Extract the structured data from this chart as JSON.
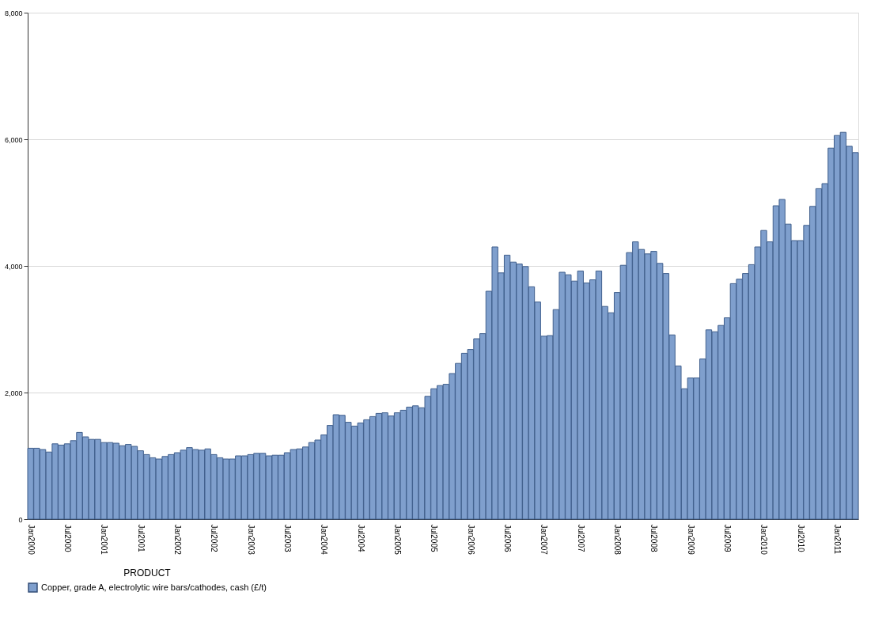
{
  "chart_data": {
    "type": "bar",
    "legend_title": "PRODUCT",
    "categories": [
      "Jan2000",
      null,
      null,
      null,
      null,
      null,
      "Jul2000",
      null,
      null,
      null,
      null,
      null,
      "Jan2001",
      null,
      null,
      null,
      null,
      null,
      "Jul2001",
      null,
      null,
      null,
      null,
      null,
      "Jan2002",
      null,
      null,
      null,
      null,
      null,
      "Jul2002",
      null,
      null,
      null,
      null,
      null,
      "Jan2003",
      null,
      null,
      null,
      null,
      null,
      "Jul2003",
      null,
      null,
      null,
      null,
      null,
      "Jan2004",
      null,
      null,
      null,
      null,
      null,
      "Jul2004",
      null,
      null,
      null,
      null,
      null,
      "Jan2005",
      null,
      null,
      null,
      null,
      null,
      "Jul2005",
      null,
      null,
      null,
      null,
      null,
      "Jan2006",
      null,
      null,
      null,
      null,
      null,
      "Jul2006",
      null,
      null,
      null,
      null,
      null,
      "Jan2007",
      null,
      null,
      null,
      null,
      null,
      "Jul2007",
      null,
      null,
      null,
      null,
      null,
      "Jan2008",
      null,
      null,
      null,
      null,
      null,
      "Jul2008",
      null,
      null,
      null,
      null,
      null,
      "Jan2009",
      null,
      null,
      null,
      null,
      null,
      "Jul2009",
      null,
      null,
      null,
      null,
      null,
      "Jan2010",
      null,
      null,
      null,
      null,
      null,
      "Jul2010",
      null,
      null,
      null,
      null,
      null,
      "Jan2011",
      null,
      null,
      null
    ],
    "series": [
      {
        "name": "Copper, grade A, electrolytic wire bars/cathodes, cash (£/t)",
        "color": "#7f9fcd",
        "values": [
          1120,
          1120,
          1100,
          1060,
          1190,
          1170,
          1190,
          1240,
          1370,
          1300,
          1260,
          1260,
          1210,
          1210,
          1200,
          1160,
          1180,
          1150,
          1080,
          1020,
          970,
          950,
          990,
          1020,
          1050,
          1090,
          1130,
          1100,
          1090,
          1110,
          1020,
          970,
          950,
          950,
          1000,
          1000,
          1020,
          1040,
          1040,
          1000,
          1010,
          1010,
          1050,
          1100,
          1110,
          1140,
          1210,
          1250,
          1330,
          1480,
          1650,
          1640,
          1530,
          1470,
          1520,
          1570,
          1620,
          1670,
          1680,
          1630,
          1680,
          1720,
          1770,
          1790,
          1760,
          1940,
          2060,
          2110,
          2130,
          2300,
          2460,
          2620,
          2680,
          2850,
          2930,
          3600,
          4300,
          3890,
          4170,
          4060,
          4030,
          3990,
          3670,
          3430,
          2890,
          2900,
          3310,
          3900,
          3860,
          3760,
          3920,
          3730,
          3780,
          3920,
          3360,
          3260,
          3580,
          4010,
          4210,
          4380,
          4260,
          4190,
          4230,
          4040,
          3880,
          2910,
          2420,
          2060,
          2230,
          2230,
          2530,
          2990,
          2960,
          3060,
          3180,
          3720,
          3790,
          3880,
          4020,
          4300,
          4560,
          4380,
          4950,
          5050,
          4660,
          4400,
          4400,
          4640,
          4940,
          5220,
          5300,
          5860,
          6060,
          6110,
          5890,
          5790
        ]
      }
    ],
    "ylim": [
      0,
      8000
    ],
    "yticks": [
      {
        "value": 0,
        "label": "0"
      },
      {
        "value": 2000,
        "label": "2,000"
      },
      {
        "value": 4000,
        "label": "4,000"
      },
      {
        "value": 6000,
        "label": "6,000"
      },
      {
        "value": 8000,
        "label": "8,000"
      }
    ],
    "grid": "y",
    "legend": "bottom"
  }
}
